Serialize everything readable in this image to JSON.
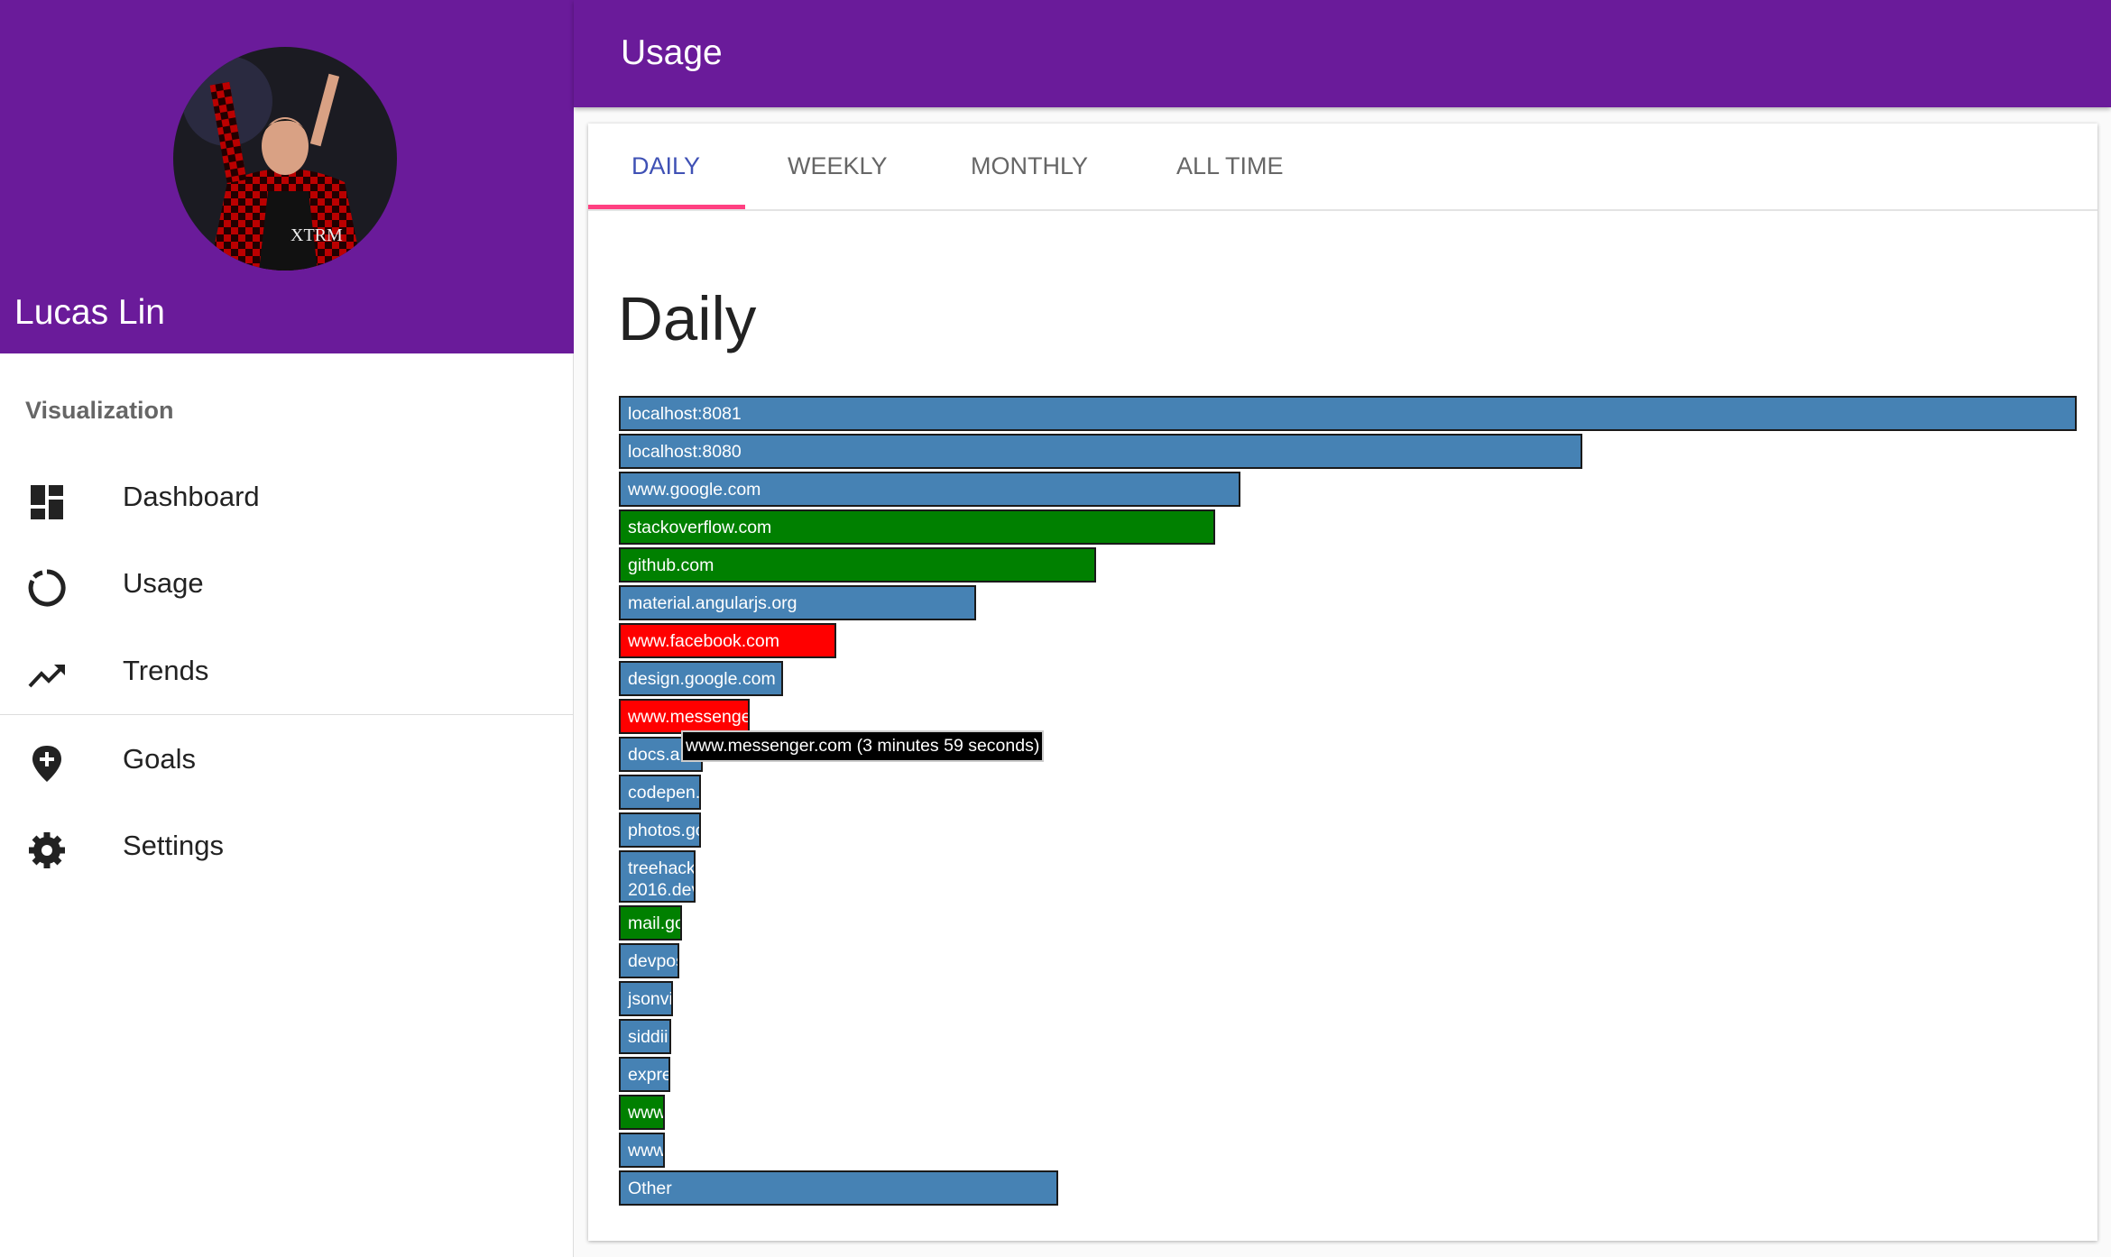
{
  "sidebar": {
    "user_name": "Lucas Lin",
    "section": "Visualization",
    "nav": [
      "Dashboard",
      "Usage",
      "Trends",
      "Goals",
      "Settings"
    ]
  },
  "toolbar": {
    "title": "Usage"
  },
  "tabs": [
    "DAILY",
    "WEEKLY",
    "MONTHLY",
    "ALL TIME"
  ],
  "chart_data": {
    "type": "bar",
    "orientation": "horizontal",
    "title": "Daily",
    "categories": [
      "localhost:8081",
      "localhost:8080",
      "www.google.com",
      "stackoverflow.com",
      "github.com",
      "material.angularjs.org",
      "www.facebook.com",
      "design.google.com",
      "www.messenge",
      "docs.a",
      "codepen.",
      "photos.gc",
      "treehack 2016.dev",
      "mail.go",
      "devpos",
      "jsonvi",
      "siddii.",
      "expre",
      "www",
      "www",
      "Other"
    ],
    "values": [
      2666,
      1762,
      1136,
      1091,
      872,
      653,
      397,
      301,
      239,
      153,
      150,
      150,
      140,
      116,
      111,
      99,
      96,
      94,
      84,
      84,
      803
    ],
    "colors": [
      "#4682b4",
      "#4682b4",
      "#4682b4",
      "#008000",
      "#008000",
      "#4682b4",
      "#ff0000",
      "#4682b4",
      "#ff0000",
      "#4682b4",
      "#4682b4",
      "#4682b4",
      "#4682b4",
      "#008000",
      "#4682b4",
      "#4682b4",
      "#4682b4",
      "#4682b4",
      "#008000",
      "#4682b4",
      "#4682b4"
    ],
    "tooltip": "www.messenger.com (3 minutes 59 seconds)"
  }
}
